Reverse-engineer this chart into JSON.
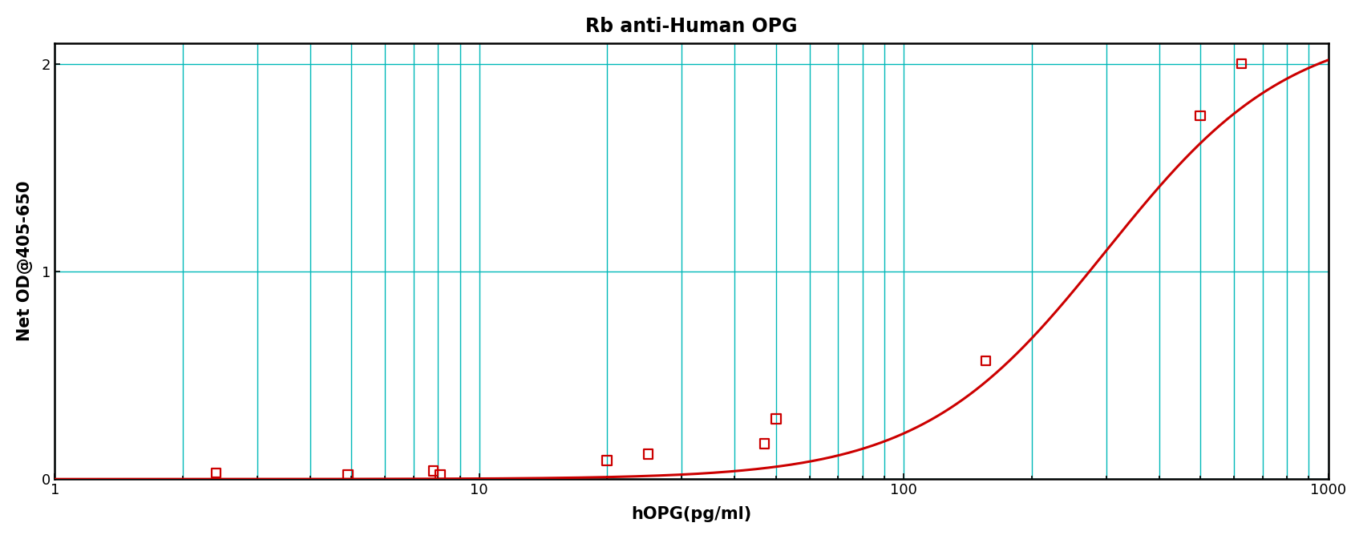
{
  "title": "Rb anti-Human OPG",
  "xlabel": "hOPG(pg/ml)",
  "ylabel": "Net OD@405-650",
  "x_data": [
    2.4,
    4.9,
    7.8,
    8.1,
    20,
    25,
    47,
    50,
    156,
    500,
    625
  ],
  "y_data": [
    0.03,
    0.02,
    0.04,
    0.02,
    0.09,
    0.12,
    0.17,
    0.29,
    0.57,
    1.75,
    2.0
  ],
  "xlim_log": [
    1,
    1000
  ],
  "ylim": [
    0.0,
    2.1
  ],
  "yticks": [
    0,
    1,
    2
  ],
  "curve_color": "#cc0000",
  "marker_color": "#cc0000",
  "grid_color": "#00b8b8",
  "background_color": "#ffffff",
  "title_fontsize": 17,
  "label_fontsize": 15,
  "tick_fontsize": 13,
  "fig_width": 17.0,
  "fig_height": 6.73
}
